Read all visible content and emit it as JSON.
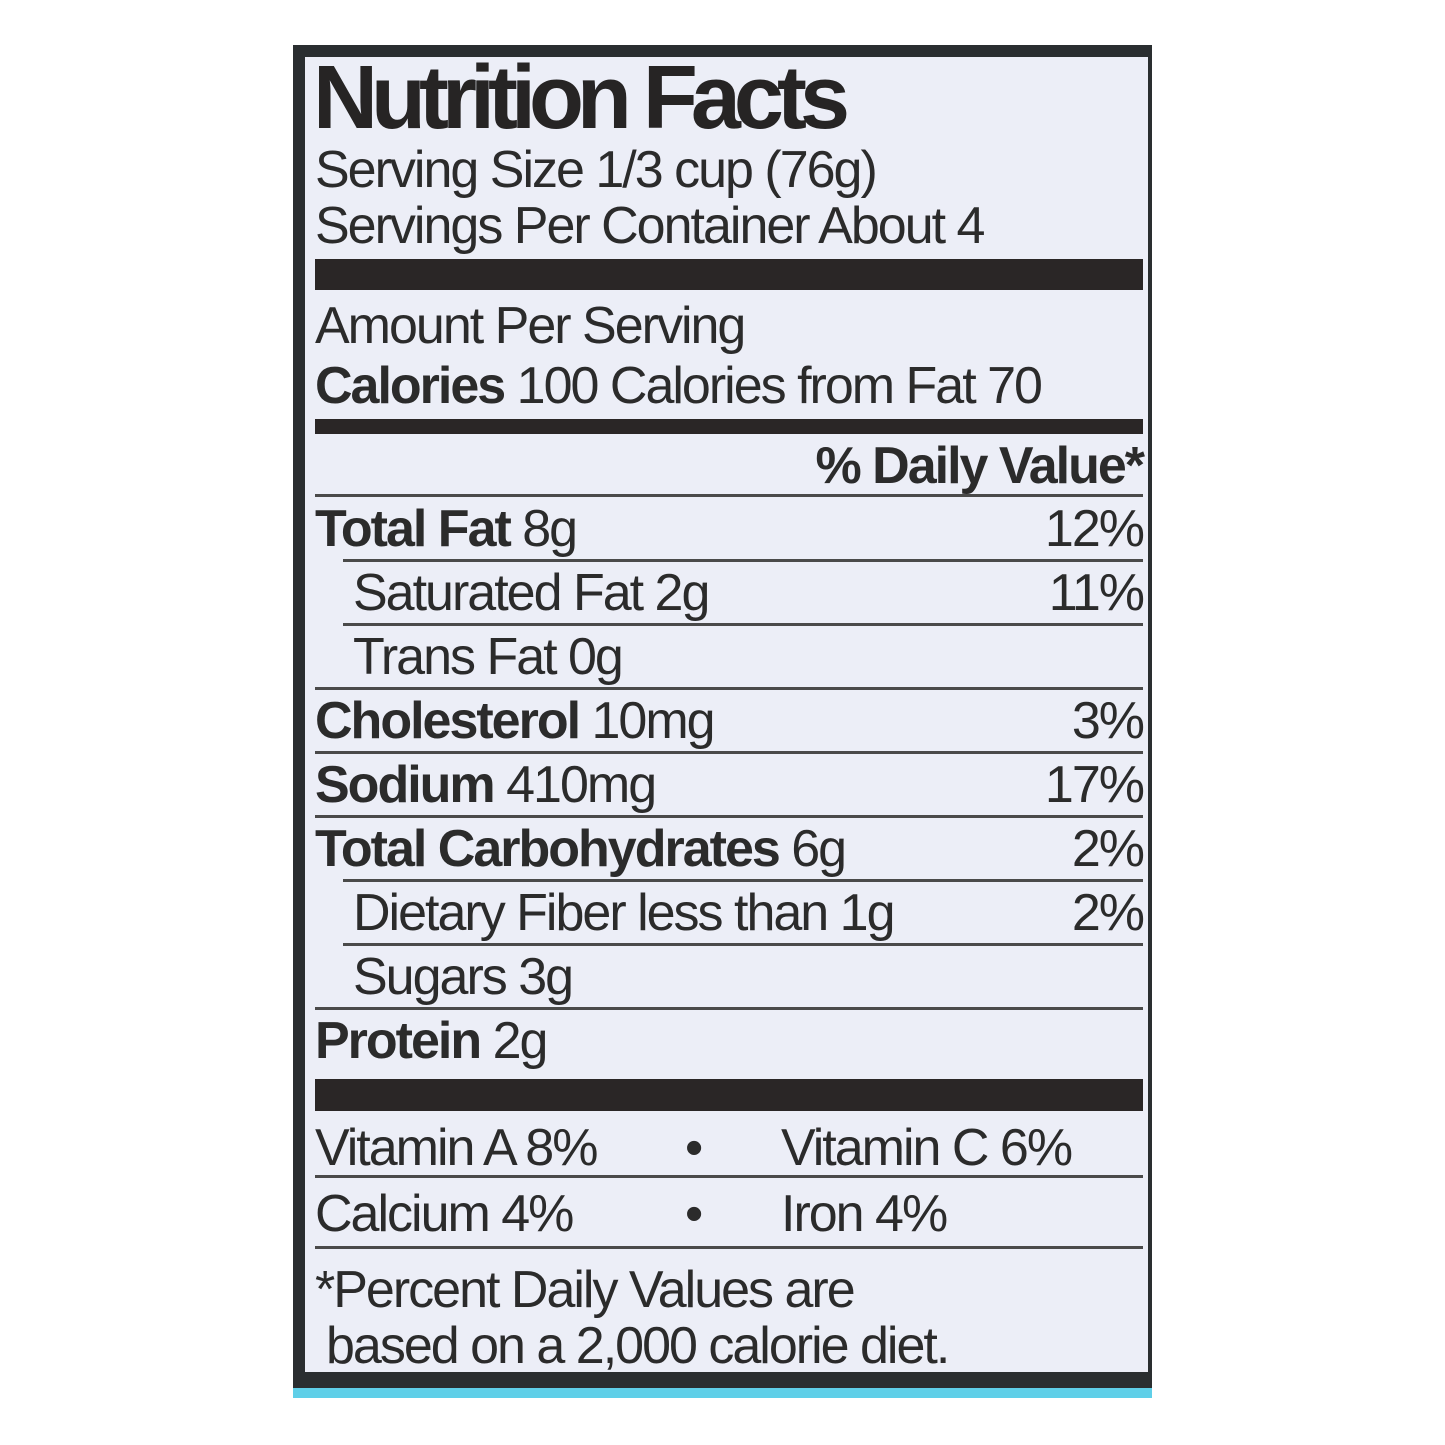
{
  "title": "Nutrition Facts",
  "serving_size": "Serving Size 1/3 cup (76g)",
  "servings_per_container": "Servings Per Container About 4",
  "amount_per_serving": "Amount Per Serving",
  "calories": {
    "label": "Calories",
    "value": "100",
    "from_fat": "Calories from Fat 70"
  },
  "daily_value_header": "% Daily Value*",
  "nutrients": [
    {
      "name": "Total Fat",
      "amount": "8g",
      "dv": "12%"
    },
    {
      "name": "Saturated Fat 2g",
      "amount": "",
      "dv": "11%"
    },
    {
      "name": "Trans Fat 0g",
      "amount": "",
      "dv": ""
    },
    {
      "name": "Cholesterol",
      "amount": "10mg",
      "dv": "3%"
    },
    {
      "name": "Sodium",
      "amount": "410mg",
      "dv": "17%"
    },
    {
      "name": "Total Carbohydrates",
      "amount": "6g",
      "dv": "2%"
    },
    {
      "name": "Dietary Fiber  less than 1g",
      "amount": "",
      "dv": "2%"
    },
    {
      "name": "Sugars 3g",
      "amount": "",
      "dv": ""
    },
    {
      "name": "Protein",
      "amount": "2g",
      "dv": ""
    }
  ],
  "vitamins": [
    {
      "left": "Vitamin A 8%",
      "sep": "•",
      "right": "Vitamin C 6%"
    },
    {
      "left": "Calcium 4%",
      "sep": "•",
      "right": "Iron 4%"
    }
  ],
  "footnote": [
    "*Percent Daily Values are",
    "based on a 2,000 calorie diet."
  ]
}
